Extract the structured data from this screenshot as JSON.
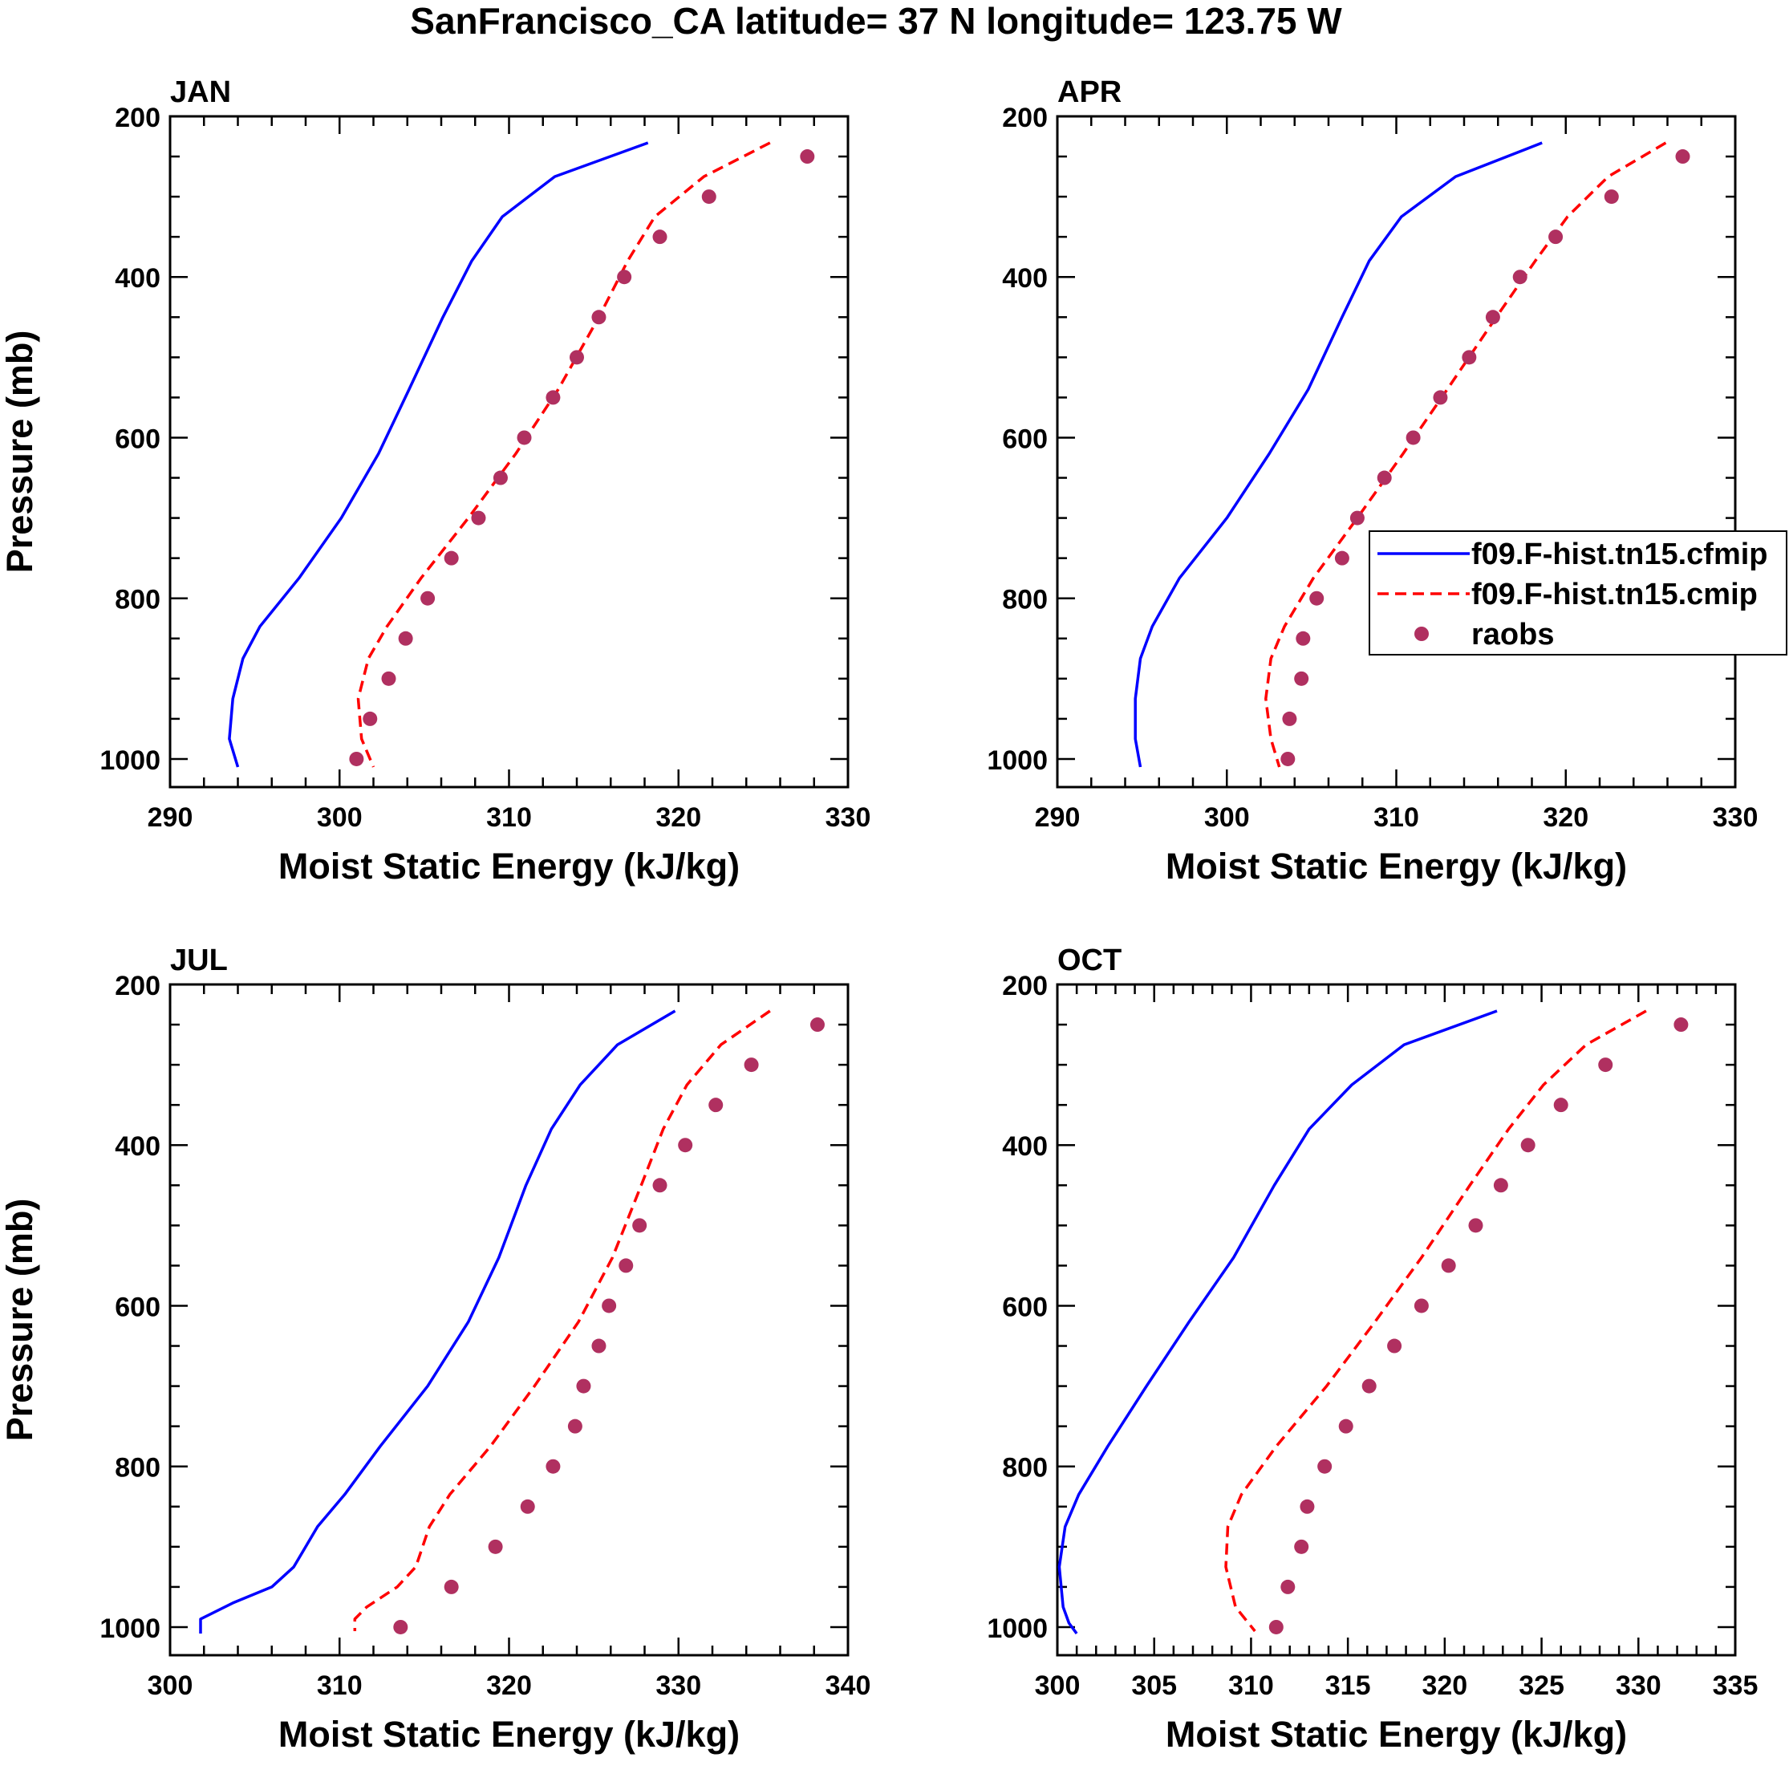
{
  "figure": {
    "title": "SanFrancisco_CA  latitude= 37 N longitude= 123.75 W",
    "colors": {
      "model_cfmip": "#0000ff",
      "model_cmip": "#ff0000",
      "raobs": "#b03060",
      "axis": "#000000"
    }
  },
  "legend": {
    "panel": "APR",
    "entries": [
      {
        "label": "f09.F-hist.tn15.cfmip",
        "style": "solid",
        "color": "#0000ff"
      },
      {
        "label": "f09.F-hist.tn15.cmip",
        "style": "dashed",
        "color": "#ff0000"
      },
      {
        "label": "raobs",
        "style": "marker",
        "color": "#b03060"
      }
    ]
  },
  "chart_data": [
    {
      "type": "line",
      "panel": "JAN",
      "title": "JAN",
      "xlabel": "Moist Static Energy (kJ/kg)",
      "ylabel": "Pressure (mb)",
      "xlim": [
        290,
        330
      ],
      "xticks": [
        290,
        300,
        310,
        320,
        330
      ],
      "ylim": [
        200,
        1000
      ],
      "yticks": [
        200,
        400,
        600,
        800,
        1000
      ],
      "y_inverted": true,
      "series": [
        {
          "name": "f09.F-hist.tn15.cfmip",
          "style": "solid",
          "p": [
            233,
            275,
            325,
            380,
            450,
            540,
            620,
            700,
            775,
            835,
            875,
            925,
            975,
            1010
          ],
          "mse": [
            318.2,
            312.7,
            309.6,
            307.8,
            306.1,
            304.1,
            302.3,
            300.1,
            297.6,
            295.3,
            294.3,
            293.7,
            293.5,
            294.0
          ]
        },
        {
          "name": "f09.F-hist.tn15.cmip",
          "style": "dashed",
          "p": [
            233,
            275,
            325,
            380,
            450,
            540,
            620,
            700,
            775,
            835,
            875,
            925,
            975,
            1010
          ],
          "mse": [
            325.4,
            321.5,
            318.6,
            317.0,
            315.3,
            312.9,
            310.4,
            307.6,
            304.8,
            302.8,
            301.7,
            301.1,
            301.3,
            302.0
          ]
        },
        {
          "name": "raobs",
          "style": "marker",
          "p": [
            250,
            300,
            350,
            400,
            450,
            500,
            550,
            600,
            650,
            700,
            750,
            800,
            850,
            900,
            950,
            1000
          ],
          "mse": [
            327.6,
            321.8,
            318.9,
            316.8,
            315.3,
            314.0,
            312.6,
            310.9,
            309.5,
            308.2,
            306.6,
            305.2,
            303.9,
            302.9,
            301.8,
            301.0
          ]
        }
      ]
    },
    {
      "type": "line",
      "panel": "APR",
      "title": "APR",
      "xlabel": "Moist Static Energy (kJ/kg)",
      "ylabel": "",
      "xlim": [
        290,
        330
      ],
      "xticks": [
        290,
        300,
        310,
        320,
        330
      ],
      "ylim": [
        200,
        1000
      ],
      "yticks": [
        200,
        400,
        600,
        800,
        1000
      ],
      "y_inverted": true,
      "series": [
        {
          "name": "f09.F-hist.tn15.cfmip",
          "style": "solid",
          "p": [
            233,
            275,
            325,
            380,
            450,
            540,
            620,
            700,
            775,
            835,
            875,
            925,
            975,
            1010
          ],
          "mse": [
            318.6,
            313.5,
            310.3,
            308.4,
            306.8,
            304.8,
            302.5,
            300.0,
            297.2,
            295.6,
            294.9,
            294.6,
            294.6,
            294.9
          ]
        },
        {
          "name": "f09.F-hist.tn15.cmip",
          "style": "dashed",
          "p": [
            233,
            275,
            325,
            380,
            450,
            540,
            620,
            700,
            775,
            835,
            875,
            925,
            975,
            1010
          ],
          "mse": [
            325.9,
            322.5,
            320.1,
            318.2,
            315.9,
            313.0,
            310.4,
            307.7,
            305.1,
            303.4,
            302.6,
            302.3,
            302.6,
            303.1
          ]
        },
        {
          "name": "raobs",
          "style": "marker",
          "p": [
            250,
            300,
            350,
            400,
            450,
            500,
            550,
            600,
            650,
            700,
            750,
            800,
            850,
            900,
            950,
            1000
          ],
          "mse": [
            326.9,
            322.7,
            319.4,
            317.3,
            315.7,
            314.3,
            312.6,
            311.0,
            309.3,
            307.7,
            306.8,
            305.3,
            304.5,
            304.4,
            303.7,
            303.6
          ]
        }
      ]
    },
    {
      "type": "line",
      "panel": "JUL",
      "title": "JUL",
      "xlabel": "Moist Static Energy (kJ/kg)",
      "ylabel": "Pressure (mb)",
      "xlim": [
        300,
        340
      ],
      "xticks": [
        300,
        310,
        320,
        330,
        340
      ],
      "ylim": [
        200,
        1000
      ],
      "yticks": [
        200,
        400,
        600,
        800,
        1000
      ],
      "y_inverted": true,
      "series": [
        {
          "name": "f09.F-hist.tn15.cfmip",
          "style": "solid",
          "p": [
            233,
            275,
            325,
            380,
            450,
            540,
            620,
            700,
            775,
            835,
            875,
            925,
            950,
            970,
            990,
            1008
          ],
          "mse": [
            329.8,
            326.4,
            324.2,
            322.5,
            321.0,
            319.4,
            317.6,
            315.2,
            312.4,
            310.3,
            308.7,
            307.3,
            306.0,
            303.7,
            301.8,
            301.8
          ]
        },
        {
          "name": "f09.F-hist.tn15.cmip",
          "style": "dashed",
          "p": [
            233,
            275,
            325,
            380,
            450,
            540,
            620,
            700,
            775,
            835,
            875,
            925,
            950,
            975,
            990,
            1005
          ],
          "mse": [
            335.4,
            332.5,
            330.5,
            329.1,
            327.8,
            326.1,
            324.1,
            321.5,
            318.9,
            316.5,
            315.3,
            314.5,
            313.4,
            311.6,
            310.9,
            310.9
          ]
        },
        {
          "name": "raobs",
          "style": "marker",
          "p": [
            250,
            300,
            350,
            400,
            450,
            500,
            550,
            600,
            650,
            700,
            750,
            800,
            850,
            900,
            950,
            1000
          ],
          "mse": [
            338.2,
            334.3,
            332.2,
            330.4,
            328.9,
            327.7,
            326.9,
            325.9,
            325.3,
            324.4,
            323.9,
            322.6,
            321.1,
            319.2,
            316.6,
            313.6
          ]
        }
      ]
    },
    {
      "type": "line",
      "panel": "OCT",
      "title": "OCT",
      "xlabel": "Moist Static Energy (kJ/kg)",
      "ylabel": "",
      "xlim": [
        300,
        335
      ],
      "xticks": [
        300,
        305,
        310,
        315,
        320,
        325,
        330,
        335
      ],
      "ylim": [
        200,
        1000
      ],
      "yticks": [
        200,
        400,
        600,
        800,
        1000
      ],
      "y_inverted": true,
      "series": [
        {
          "name": "f09.F-hist.tn15.cfmip",
          "style": "solid",
          "p": [
            233,
            275,
            325,
            380,
            450,
            540,
            620,
            700,
            775,
            835,
            875,
            925,
            975,
            995,
            1008
          ],
          "mse": [
            322.7,
            317.9,
            315.2,
            313.0,
            311.2,
            309.1,
            306.8,
            304.6,
            302.6,
            301.1,
            300.4,
            300.1,
            300.3,
            300.6,
            301.0
          ]
        },
        {
          "name": "f09.F-hist.tn15.cmip",
          "style": "dashed",
          "p": [
            233,
            275,
            325,
            380,
            450,
            540,
            620,
            700,
            775,
            835,
            875,
            925,
            975,
            1005
          ],
          "mse": [
            330.4,
            327.3,
            325.1,
            323.3,
            321.3,
            318.8,
            316.4,
            313.9,
            311.3,
            309.5,
            308.8,
            308.7,
            309.2,
            310.2
          ]
        },
        {
          "name": "raobs",
          "style": "marker",
          "p": [
            250,
            300,
            350,
            400,
            450,
            500,
            550,
            600,
            650,
            700,
            750,
            800,
            850,
            900,
            950,
            1000
          ],
          "mse": [
            332.2,
            328.3,
            326.0,
            324.3,
            322.9,
            321.6,
            320.2,
            318.8,
            317.4,
            316.1,
            314.9,
            313.8,
            312.9,
            312.6,
            311.9,
            311.3
          ]
        }
      ]
    }
  ]
}
